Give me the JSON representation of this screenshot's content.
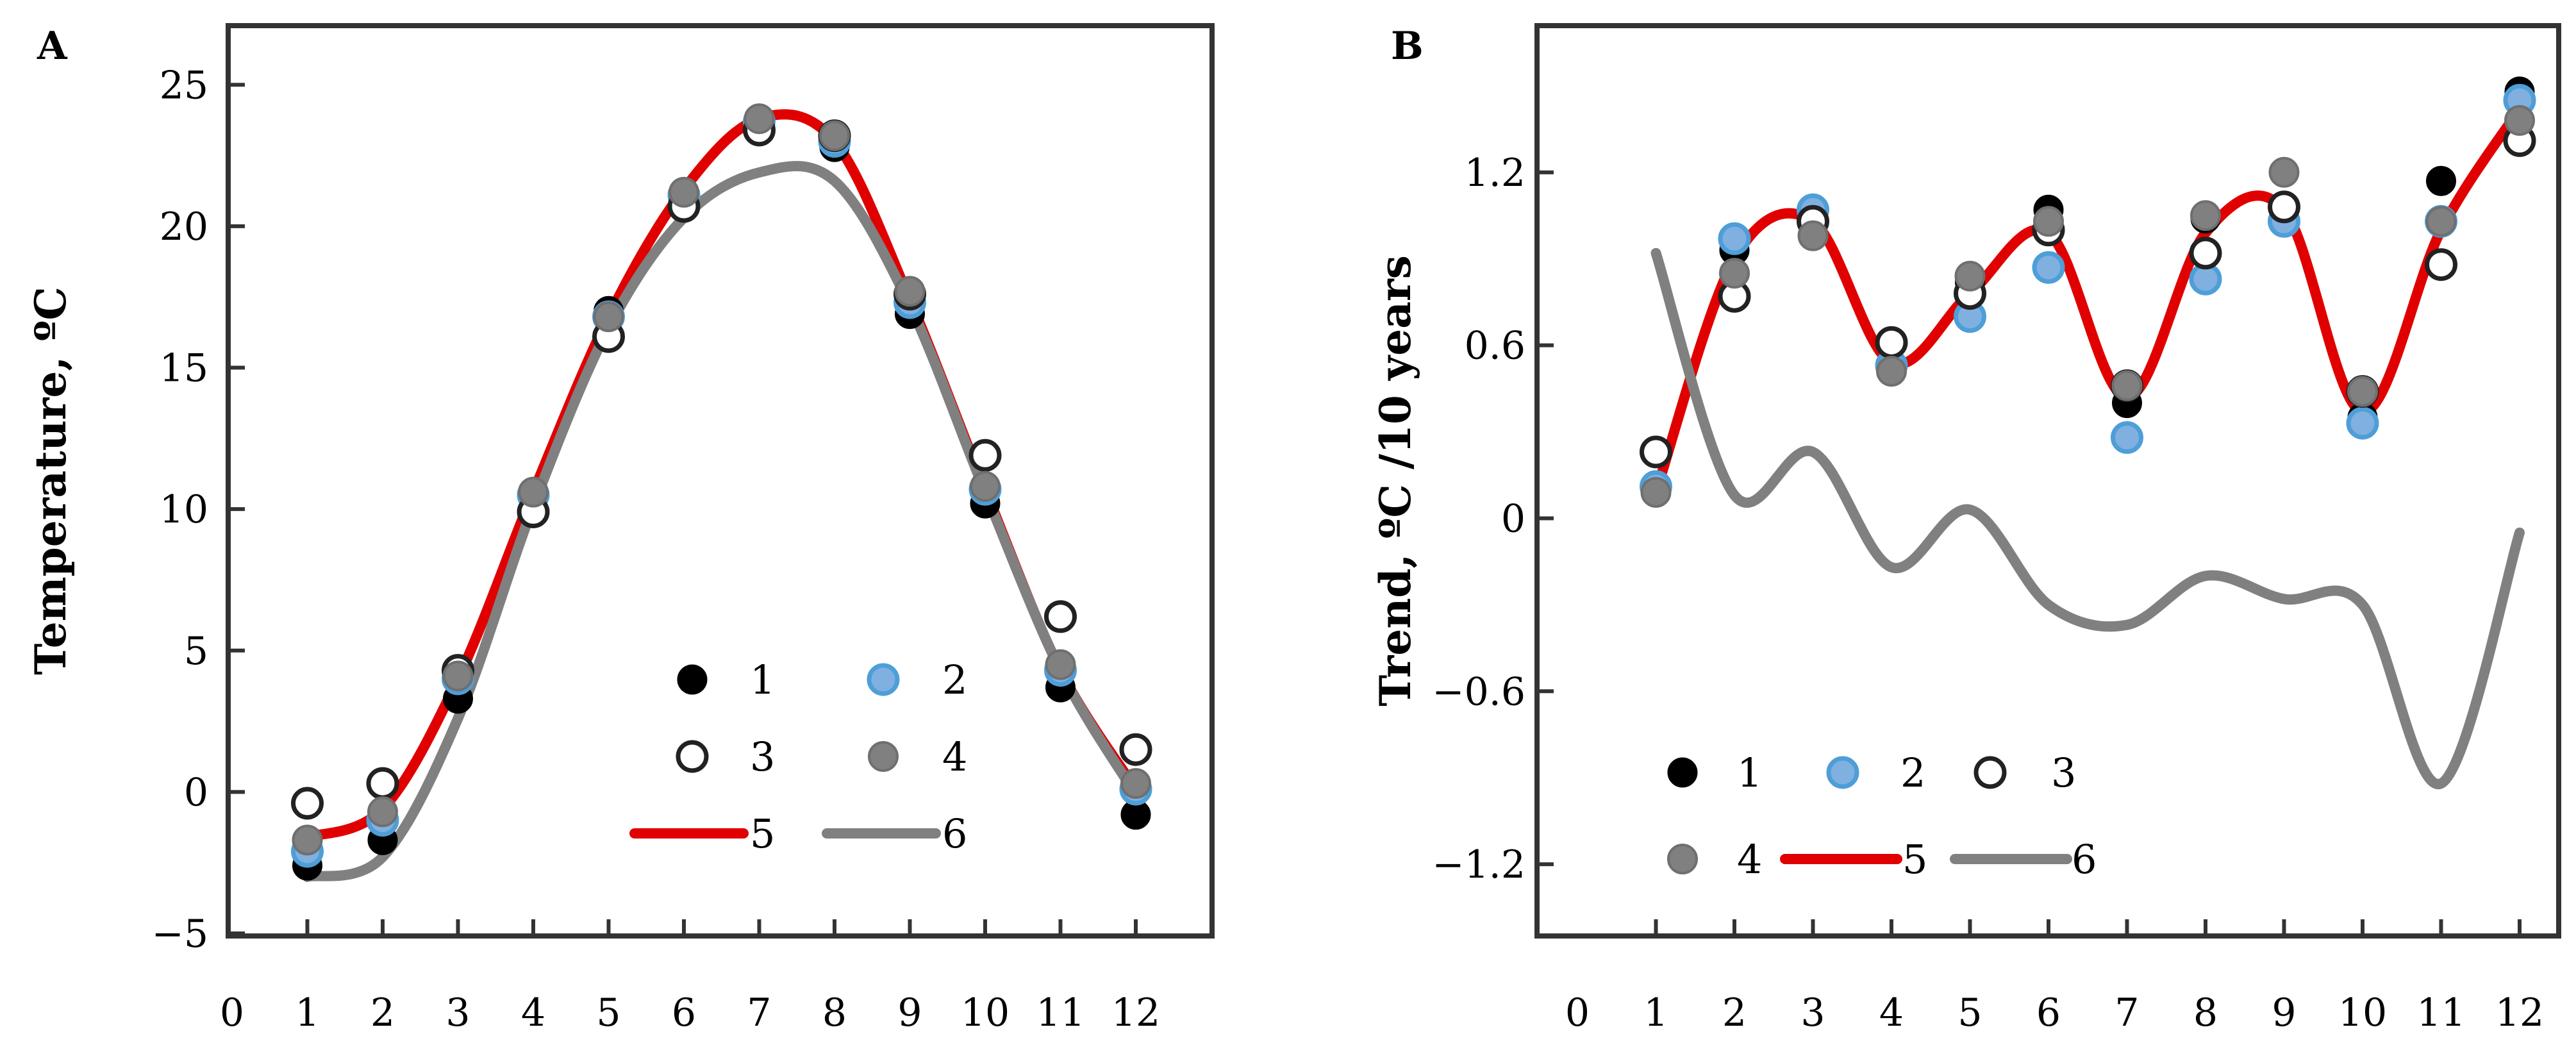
{
  "colors": {
    "series1": "#000000",
    "series2": "#4e9ed8",
    "series2_fill": "#7fb0e0",
    "series3": "#ffffff",
    "series4": "#808080",
    "curve5": "#e00000",
    "curve6": "#808080"
  },
  "chart_data": [
    {
      "type": "scatter",
      "panel": "A",
      "ylabel": "Temperature, ºC",
      "xlabel": "",
      "xlim": [
        0,
        12.5
      ],
      "ylim": [
        -5,
        27
      ],
      "xticks": [
        "0",
        "1",
        "2",
        "3",
        "4",
        "5",
        "6",
        "7",
        "8",
        "9",
        "10",
        "11",
        "12"
      ],
      "yticks": [
        "−5",
        "0",
        "5",
        "10",
        "15",
        "20",
        "25"
      ],
      "ytick_values": [
        -5,
        0,
        5,
        10,
        15,
        20,
        25
      ],
      "legend": [
        "1",
        "2",
        "3",
        "4",
        "5",
        "6"
      ],
      "legend_position": "bottom-right",
      "x": [
        1,
        2,
        3,
        4,
        5,
        6,
        7,
        8,
        9,
        10,
        11,
        12
      ],
      "series": [
        {
          "name": "1",
          "marker": "filled-black",
          "values": [
            -2.6,
            -1.7,
            3.3,
            10.4,
            17.0,
            21.2,
            23.7,
            22.8,
            16.9,
            10.2,
            3.7,
            -0.8
          ]
        },
        {
          "name": "2",
          "marker": "filled-blue",
          "values": [
            -2.1,
            -1.0,
            4.0,
            10.5,
            16.8,
            21.1,
            23.7,
            23.0,
            17.3,
            10.7,
            4.3,
            0.1
          ]
        },
        {
          "name": "3",
          "marker": "open",
          "values": [
            -0.4,
            0.3,
            4.3,
            9.9,
            16.1,
            20.7,
            23.4,
            23.2,
            17.6,
            11.9,
            6.2,
            1.5
          ]
        },
        {
          "name": "4",
          "marker": "filled-gray",
          "values": [
            -1.7,
            -0.7,
            4.1,
            10.6,
            16.8,
            21.2,
            23.8,
            23.2,
            17.7,
            10.8,
            4.5,
            0.3
          ]
        }
      ],
      "curves": [
        {
          "name": "5",
          "values": [
            -1.6,
            -0.6,
            4.0,
            10.6,
            16.8,
            21.3,
            23.8,
            23.0,
            17.4,
            10.7,
            4.3,
            0.1
          ]
        },
        {
          "name": "6",
          "values": [
            -3.0,
            -2.3,
            2.6,
            10.1,
            16.4,
            20.3,
            21.9,
            21.6,
            17.2,
            10.6,
            4.3,
            -0.1
          ]
        }
      ]
    },
    {
      "type": "scatter",
      "panel": "B",
      "ylabel": "Trend, ºC /10 years",
      "xlabel": "",
      "xlim": [
        0,
        12.5
      ],
      "ylim": [
        -1.44,
        1.7
      ],
      "xticks": [
        "0",
        "1",
        "2",
        "3",
        "4",
        "5",
        "6",
        "7",
        "8",
        "9",
        "10",
        "11",
        "12"
      ],
      "yticks": [
        "−1.2",
        "−0.6",
        "0",
        "0.6",
        "1.2"
      ],
      "ytick_values": [
        -1.2,
        -0.6,
        0,
        0.6,
        1.2
      ],
      "legend": [
        "1",
        "2",
        "3",
        "4",
        "5",
        "6"
      ],
      "legend_position": "bottom-left",
      "x": [
        1,
        2,
        3,
        4,
        5,
        6,
        7,
        8,
        9,
        10,
        11,
        12
      ],
      "series": [
        {
          "name": "1",
          "marker": "filled-black",
          "values": [
            0.09,
            0.93,
            1.04,
            0.52,
            0.82,
            1.07,
            0.4,
            1.04,
            1.03,
            0.35,
            1.17,
            1.48
          ]
        },
        {
          "name": "2",
          "marker": "filled-blue",
          "values": [
            0.11,
            0.97,
            1.07,
            0.53,
            0.7,
            0.87,
            0.28,
            0.83,
            1.03,
            0.33,
            1.03,
            1.45
          ]
        },
        {
          "name": "3",
          "marker": "open",
          "values": [
            0.23,
            0.77,
            1.03,
            0.61,
            0.78,
            1.0,
            0.46,
            0.92,
            1.08,
            0.44,
            0.88,
            1.31
          ]
        },
        {
          "name": "4",
          "marker": "filled-gray",
          "values": [
            0.09,
            0.85,
            0.98,
            0.51,
            0.84,
            1.03,
            0.46,
            1.05,
            1.2,
            0.44,
            1.03,
            1.38
          ]
        }
      ],
      "curves": [
        {
          "name": "5",
          "values": [
            0.09,
            0.9,
            1.03,
            0.54,
            0.78,
            0.99,
            0.42,
            0.99,
            1.07,
            0.37,
            1.0,
            1.42
          ]
        },
        {
          "name": "6",
          "values": [
            0.92,
            0.08,
            0.23,
            -0.17,
            0.03,
            -0.3,
            -0.37,
            -0.2,
            -0.28,
            -0.3,
            -0.92,
            -0.05
          ]
        }
      ]
    }
  ]
}
